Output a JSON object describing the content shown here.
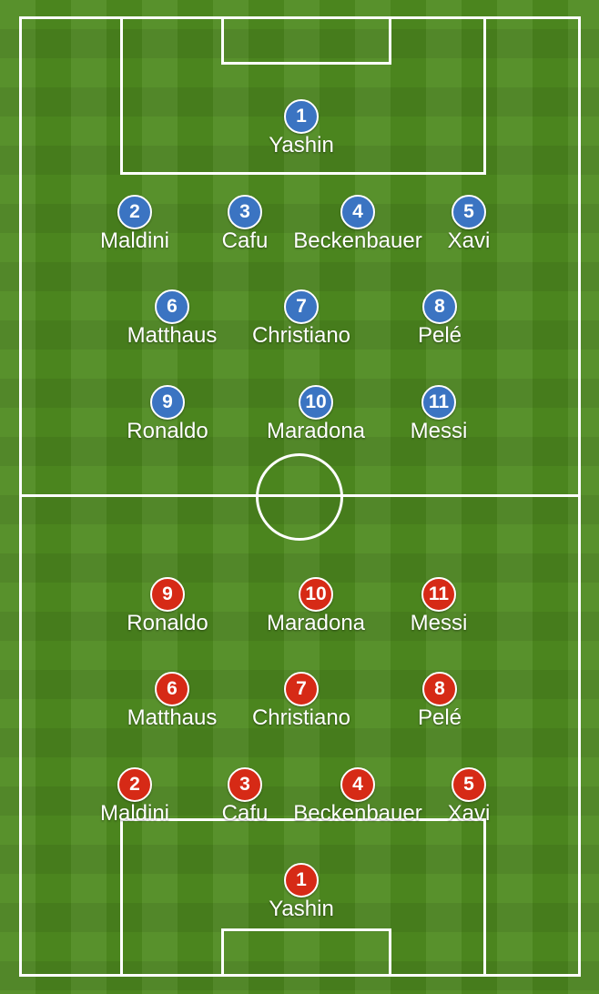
{
  "lineup": {
    "blue_team": [
      {
        "number": "1",
        "name": "Yashin"
      },
      {
        "number": "2",
        "name": "Maldini"
      },
      {
        "number": "3",
        "name": "Cafu"
      },
      {
        "number": "4",
        "name": "Beckenbauer"
      },
      {
        "number": "5",
        "name": "Xavi"
      },
      {
        "number": "6",
        "name": "Matthaus"
      },
      {
        "number": "7",
        "name": "Christiano"
      },
      {
        "number": "8",
        "name": "Pelé"
      },
      {
        "number": "9",
        "name": "Ronaldo"
      },
      {
        "number": "10",
        "name": "Maradona"
      },
      {
        "number": "11",
        "name": "Messi"
      }
    ],
    "red_team": [
      {
        "number": "1",
        "name": "Yashin"
      },
      {
        "number": "2",
        "name": "Maldini"
      },
      {
        "number": "3",
        "name": "Cafu"
      },
      {
        "number": "4",
        "name": "Beckenbauer"
      },
      {
        "number": "5",
        "name": "Xavi"
      },
      {
        "number": "6",
        "name": "Matthaus"
      },
      {
        "number": "7",
        "name": "Christiano"
      },
      {
        "number": "8",
        "name": "Pelé"
      },
      {
        "number": "9",
        "name": "Ronaldo"
      },
      {
        "number": "10",
        "name": "Maradona"
      },
      {
        "number": "11",
        "name": "Messi"
      }
    ]
  },
  "colors": {
    "blue_team": "#3b74c2",
    "red_team": "#d62a16",
    "pitch": "#4e8a1f",
    "lines": "#ffffff"
  }
}
